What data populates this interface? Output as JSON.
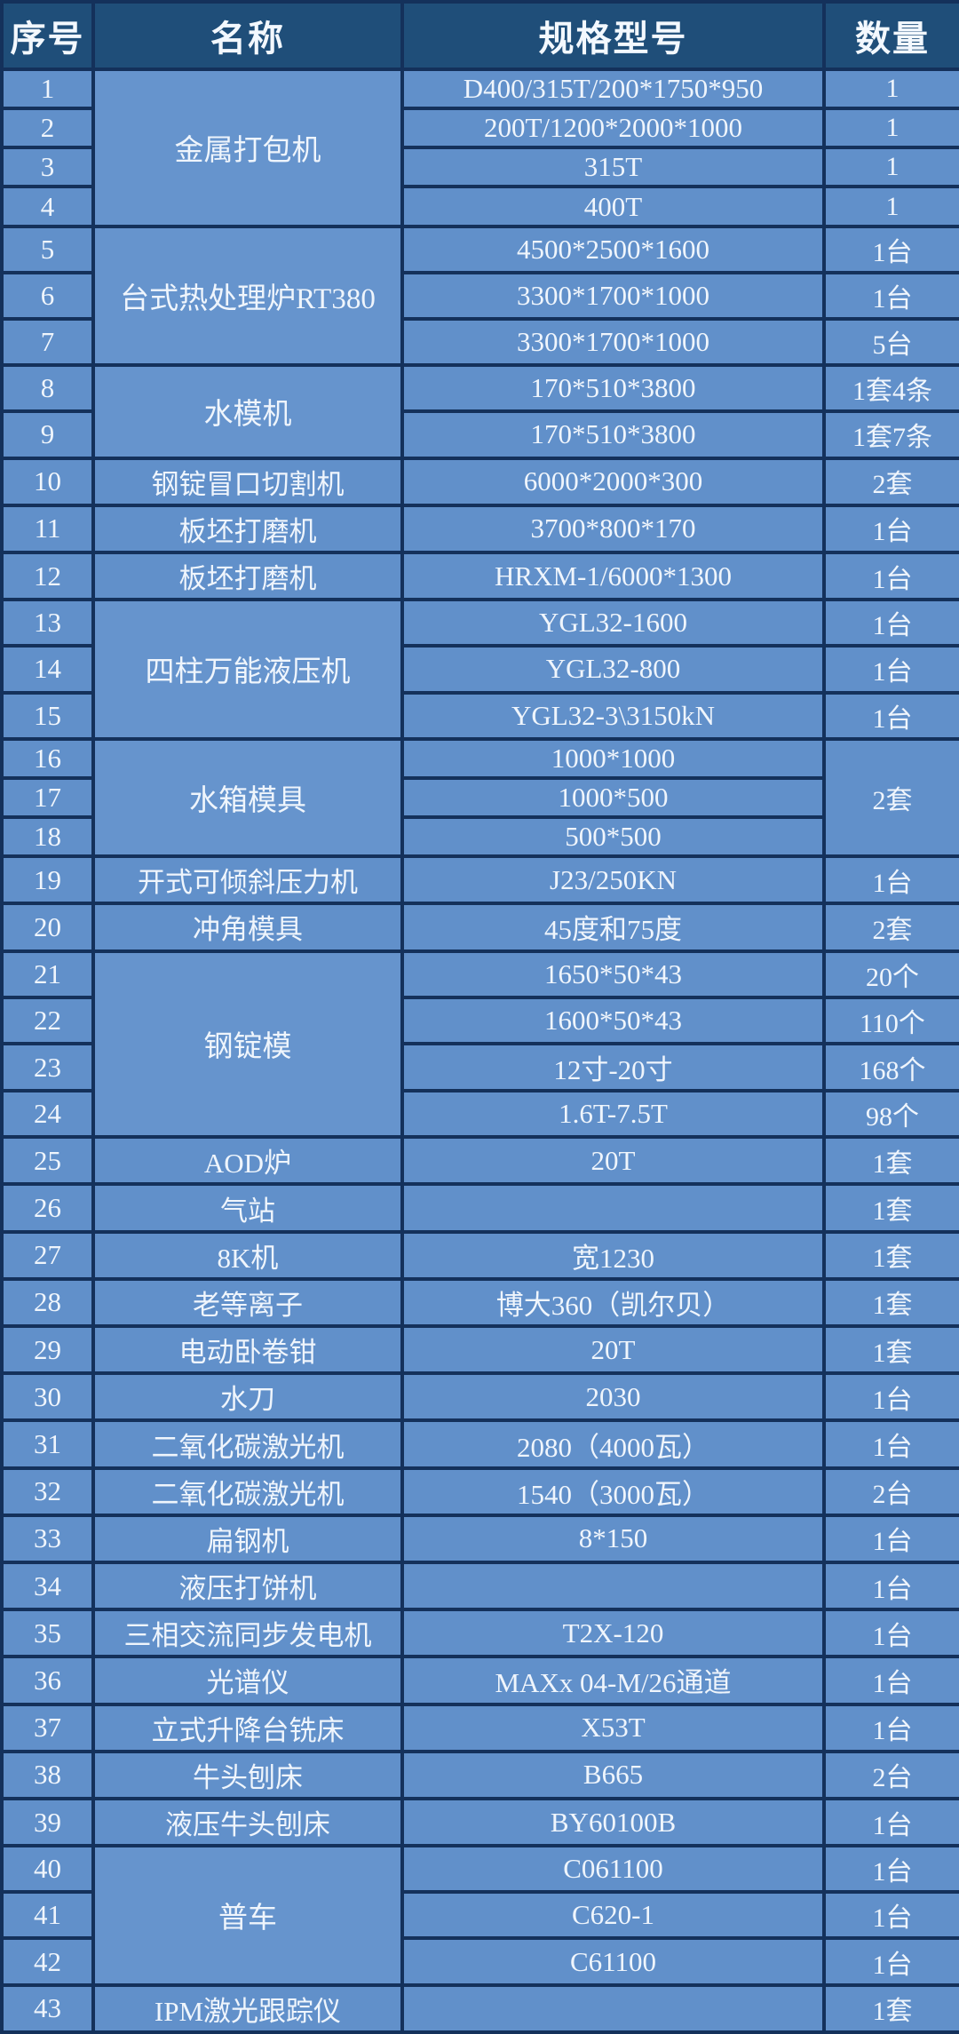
{
  "table": {
    "headers": [
      "序号",
      "名称",
      "规格型号",
      "数量"
    ],
    "colors": {
      "header_bg": "#1F4E79",
      "cell_bg": "#6190CA",
      "merged_name_bg": "#6694CD",
      "border": "#14315B",
      "text": "#EFF5FC"
    },
    "rows": [
      {
        "no": "1",
        "name": "金属打包机",
        "name_span": 4,
        "spec": "D400/315T/200*1750*950",
        "qty": "1"
      },
      {
        "no": "2",
        "spec": "200T/1200*2000*1000",
        "qty": "1"
      },
      {
        "no": "3",
        "spec": "315T",
        "qty": "1"
      },
      {
        "no": "4",
        "spec": "400T",
        "qty": "1"
      },
      {
        "no": "5",
        "name": "台式热处理炉RT380",
        "name_span": 3,
        "spec": "4500*2500*1600",
        "qty": "1台"
      },
      {
        "no": "6",
        "spec": "3300*1700*1000",
        "qty": "1台"
      },
      {
        "no": "7",
        "spec": "3300*1700*1000",
        "qty": "5台"
      },
      {
        "no": "8",
        "name": "水模机",
        "name_span": 2,
        "spec": "170*510*3800",
        "qty": "1套4条"
      },
      {
        "no": "9",
        "spec": "170*510*3800",
        "qty": "1套7条"
      },
      {
        "no": "10",
        "name": "钢锭冒口切割机",
        "spec": "6000*2000*300",
        "qty": "2套"
      },
      {
        "no": "11",
        "name": "板坯打磨机",
        "spec": "3700*800*170",
        "qty": "1台"
      },
      {
        "no": "12",
        "name": "板坯打磨机",
        "spec": "HRXM-1/6000*1300",
        "qty": "1台"
      },
      {
        "no": "13",
        "name": "四柱万能液压机",
        "name_span": 3,
        "spec": "YGL32-1600",
        "qty": "1台"
      },
      {
        "no": "14",
        "spec": "YGL32-800",
        "qty": "1台"
      },
      {
        "no": "15",
        "spec": "YGL32-3\\3150kN",
        "qty": "1台"
      },
      {
        "no": "16",
        "name": "水箱模具",
        "name_span": 3,
        "spec": "1000*1000",
        "qty": "2套",
        "qty_span": 3
      },
      {
        "no": "17",
        "spec": "1000*500"
      },
      {
        "no": "18",
        "spec": "500*500"
      },
      {
        "no": "19",
        "name": "开式可倾斜压力机",
        "spec": "J23/250KN",
        "qty": "1台"
      },
      {
        "no": "20",
        "name": "冲角模具",
        "spec": "45度和75度",
        "qty": "2套"
      },
      {
        "no": "21",
        "name": "钢锭模",
        "name_span": 4,
        "spec": "1650*50*43",
        "qty": "20个"
      },
      {
        "no": "22",
        "spec": "1600*50*43",
        "qty": "110个"
      },
      {
        "no": "23",
        "spec": "12寸-20寸",
        "qty": "168个"
      },
      {
        "no": "24",
        "spec": "1.6T-7.5T",
        "qty": "98个"
      },
      {
        "no": "25",
        "name": "AOD炉",
        "spec": "20T",
        "qty": "1套"
      },
      {
        "no": "26",
        "name": "气站",
        "spec": "",
        "qty": "1套"
      },
      {
        "no": "27",
        "name": "8K机",
        "spec": "宽1230",
        "qty": "1套"
      },
      {
        "no": "28",
        "name": "老等离子",
        "spec": "博大360（凯尔贝）",
        "qty": "1套"
      },
      {
        "no": "29",
        "name": "电动卧卷钳",
        "spec": "20T",
        "qty": "1套"
      },
      {
        "no": "30",
        "name": "水刀",
        "spec": "2030",
        "qty": "1台"
      },
      {
        "no": "31",
        "name": "二氧化碳激光机",
        "spec": "2080（4000瓦）",
        "qty": "1台"
      },
      {
        "no": "32",
        "name": "二氧化碳激光机",
        "spec": "1540（3000瓦）",
        "qty": "2台"
      },
      {
        "no": "33",
        "name": "扁钢机",
        "spec": "8*150",
        "qty": "1台"
      },
      {
        "no": "34",
        "name": "液压打饼机",
        "spec": "",
        "qty": "1台"
      },
      {
        "no": "35",
        "name": "三相交流同步发电机",
        "spec": "T2X-120",
        "qty": "1台"
      },
      {
        "no": "36",
        "name": "光谱仪",
        "spec": "MAXx 04-M/26通道",
        "qty": "1台"
      },
      {
        "no": "37",
        "name": "立式升降台铣床",
        "spec": "X53T",
        "qty": "1台"
      },
      {
        "no": "38",
        "name": "牛头刨床",
        "spec": "B665",
        "qty": "2台"
      },
      {
        "no": "39",
        "name": "液压牛头刨床",
        "spec": "BY60100B",
        "qty": "1台"
      },
      {
        "no": "40",
        "name": "普车",
        "name_span": 3,
        "spec": "C061100",
        "qty": "1台"
      },
      {
        "no": "41",
        "spec": "C620-1",
        "qty": "1台"
      },
      {
        "no": "42",
        "spec": "C61100",
        "qty": "1台"
      },
      {
        "no": "43",
        "name": "IPM激光跟踪仪",
        "spec": "",
        "qty": "1套"
      }
    ]
  }
}
